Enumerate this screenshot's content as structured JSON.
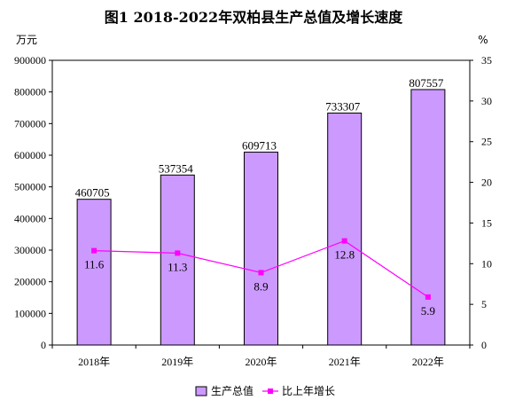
{
  "chart_data": {
    "type": "bar",
    "title": "图1 2018-2022年双柏县生产总值及增长速度",
    "categories": [
      "2018年",
      "2019年",
      "2020年",
      "2021年",
      "2022年"
    ],
    "series": [
      {
        "name": "生产总值",
        "type": "bar",
        "axis": "left",
        "values": [
          460705,
          537354,
          609713,
          733307,
          807557
        ],
        "color": "#cc99ff"
      },
      {
        "name": "比上年增长",
        "type": "line",
        "axis": "right",
        "values": [
          11.6,
          11.3,
          8.9,
          12.8,
          5.9
        ],
        "color": "#ff00ff"
      }
    ],
    "y_left": {
      "unit": "万元",
      "ylim": [
        0,
        900000
      ],
      "ticks": [
        "0",
        "100000",
        "200000",
        "300000",
        "400000",
        "500000",
        "600000",
        "700000",
        "800000",
        "900000"
      ]
    },
    "y_right": {
      "unit": "%",
      "ylim": [
        0,
        35
      ],
      "ticks": [
        "0",
        "5",
        "10",
        "15",
        "20",
        "25",
        "30",
        "35"
      ]
    },
    "legend_position": "bottom",
    "grid": false
  }
}
